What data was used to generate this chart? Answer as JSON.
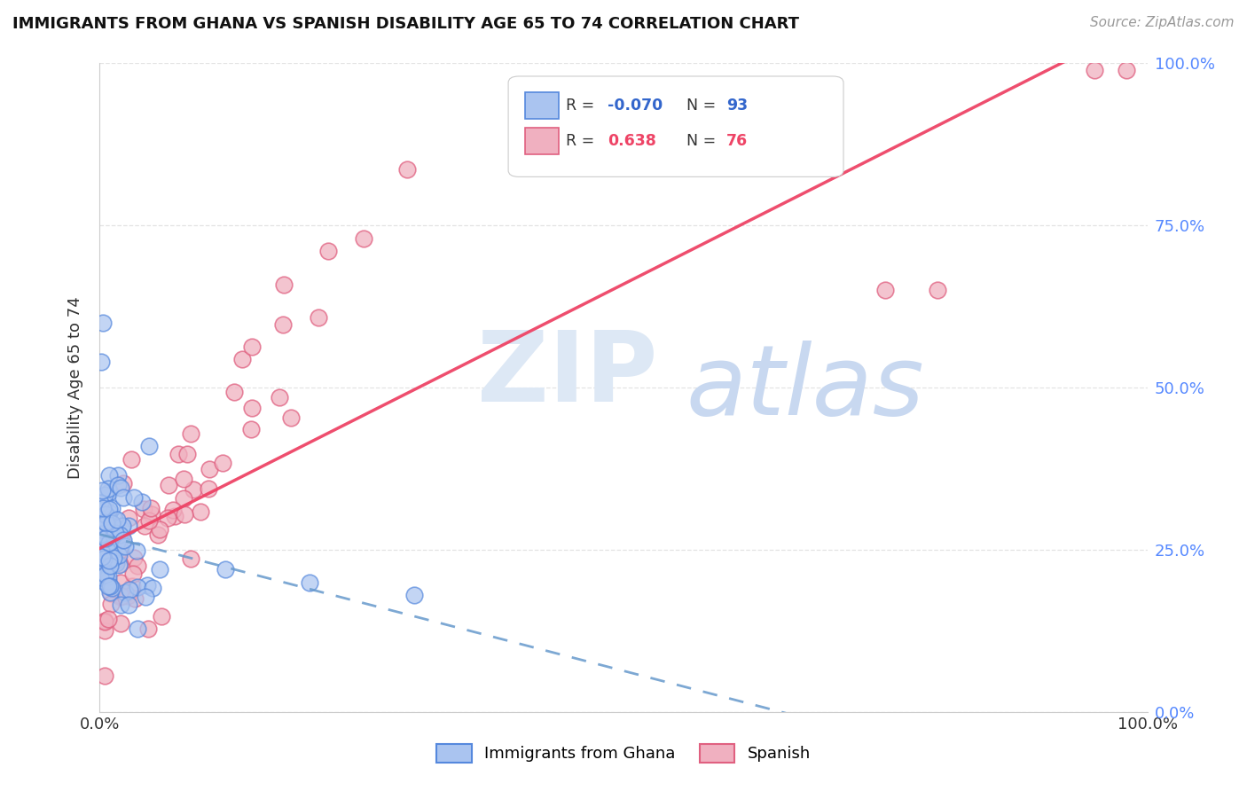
{
  "title": "IMMIGRANTS FROM GHANA VS SPANISH DISABILITY AGE 65 TO 74 CORRELATION CHART",
  "source_text": "Source: ZipAtlas.com",
  "ylabel": "Disability Age 65 to 74",
  "blue_label": "Immigrants from Ghana",
  "pink_label": "Spanish",
  "blue_R": -0.07,
  "blue_N": 93,
  "pink_R": 0.638,
  "pink_N": 76,
  "blue_face_color": "#aac4f0",
  "blue_edge_color": "#5588dd",
  "pink_face_color": "#f0b0c0",
  "pink_edge_color": "#e06080",
  "blue_line_color": "#6699cc",
  "pink_line_color": "#ee4466",
  "background_color": "#ffffff",
  "grid_color": "#dddddd",
  "xlim": [
    0.0,
    1.0
  ],
  "ylim": [
    0.0,
    1.0
  ],
  "watermark_zip_color": "#dde8f5",
  "watermark_atlas_color": "#c8d8f0",
  "figsize": [
    14.06,
    8.92
  ],
  "dpi": 100
}
